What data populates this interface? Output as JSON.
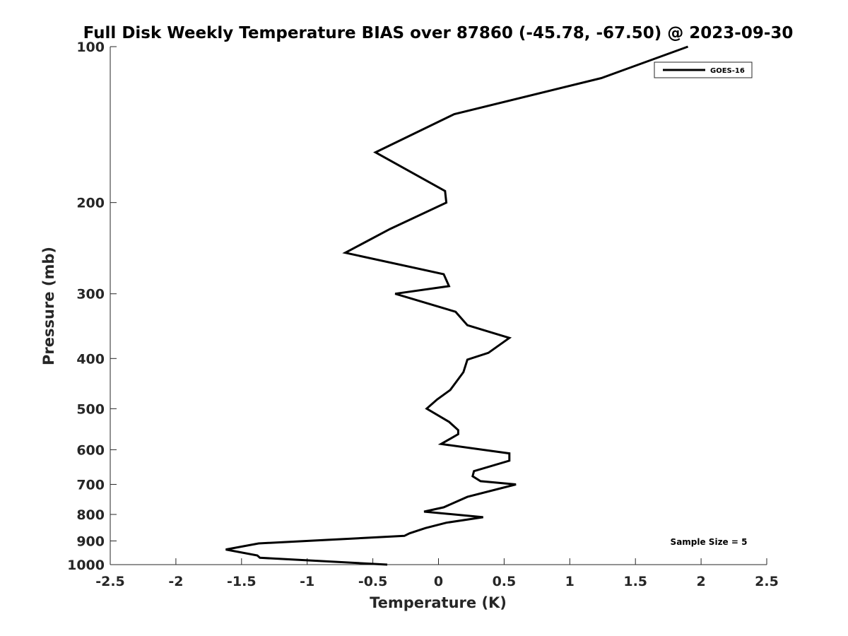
{
  "chart_data": {
    "type": "line",
    "title": "Full Disk Weekly Temperature BIAS over 87860 (-45.78, -67.50) @ 2023-09-30",
    "xlabel": "Temperature (K)",
    "ylabel": "Pressure (mb)",
    "xlim": [
      -2.5,
      2.5
    ],
    "ylim": [
      100,
      1000
    ],
    "yscale": "log",
    "yreversed": true,
    "xticks": [
      -2.5,
      -2,
      -1.5,
      -1,
      -0.5,
      0,
      0.5,
      1,
      1.5,
      2,
      2.5
    ],
    "xtick_labels": [
      "-2.5",
      "-2",
      "-1.5",
      "-1",
      "-0.5",
      "0",
      "0.5",
      "1",
      "1.5",
      "2",
      "2.5"
    ],
    "yticks": [
      100,
      200,
      300,
      400,
      500,
      600,
      700,
      800,
      900,
      1000
    ],
    "ytick_labels": [
      "100",
      "200",
      "300",
      "400",
      "500",
      "600",
      "700",
      "800",
      "900",
      "1000"
    ],
    "grid": false,
    "legend_position": "top-right",
    "series": [
      {
        "name": "GOES-16",
        "color": "#000000",
        "x": [
          1.9,
          1.24,
          0.12,
          -0.48,
          0.05,
          0.06,
          -0.37,
          -0.71,
          0.04,
          0.08,
          -0.33,
          0.13,
          0.22,
          0.54,
          0.38,
          0.22,
          0.19,
          0.09,
          -0.01,
          -0.09,
          0.08,
          0.15,
          0.15,
          0.02,
          0.54,
          0.54,
          0.27,
          0.26,
          0.32,
          0.59,
          0.22,
          0.04,
          -0.11,
          0.34,
          0.06,
          -0.1,
          -0.22,
          -0.26,
          -1.37,
          -1.62,
          -1.38,
          -1.36,
          -0.39
        ],
        "y": [
          100,
          115,
          135,
          160,
          190,
          200,
          225,
          250,
          275,
          290,
          300,
          325,
          345,
          365,
          390,
          402,
          425,
          460,
          480,
          500,
          530,
          550,
          560,
          585,
          610,
          630,
          660,
          675,
          690,
          700,
          740,
          775,
          790,
          810,
          830,
          850,
          870,
          880,
          910,
          935,
          960,
          970,
          1000
        ]
      }
    ],
    "annotations": [
      "Sample Size = 5"
    ]
  }
}
